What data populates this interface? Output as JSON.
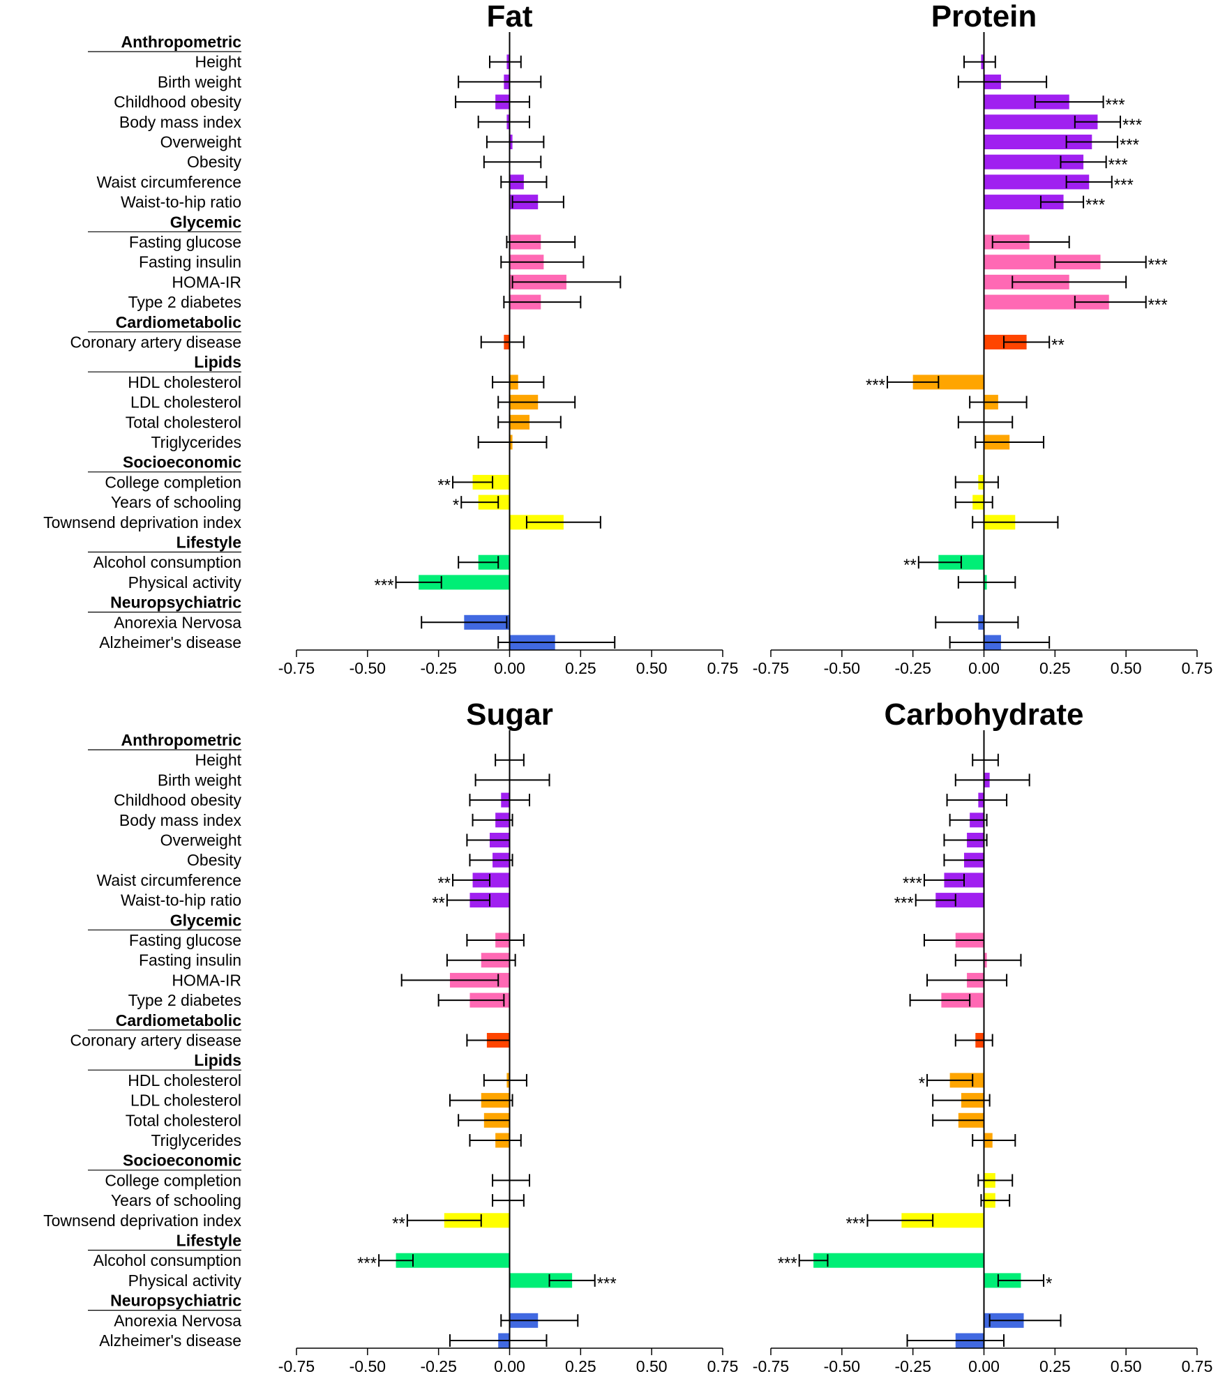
{
  "chart_data": {
    "type": "bar",
    "orientation": "horizontal",
    "xlim": [
      -0.75,
      0.75
    ],
    "xticks": [
      "-0.75",
      "-0.50",
      "-0.25",
      "0.00",
      "0.25",
      "0.50",
      "0.75"
    ],
    "colors": {
      "Anthropometric": "#a020f0",
      "Glycemic": "#ff69b4",
      "Cardiometabolic": "#ff4500",
      "Lipids": "#ffa500",
      "Socioeconomic": "#ffff00",
      "Lifestyle": "#00ee76",
      "Neuropsychiatric": "#4169e1"
    },
    "groups": [
      {
        "name": "Anthropometric",
        "traits": [
          "Height",
          "Birth weight",
          "Childhood obesity",
          "Body mass index",
          "Overweight",
          "Obesity",
          "Waist circumference",
          "Waist-to-hip ratio"
        ]
      },
      {
        "name": "Glycemic",
        "traits": [
          "Fasting glucose",
          "Fasting insulin",
          "HOMA-IR",
          "Type 2 diabetes"
        ]
      },
      {
        "name": "Cardiometabolic",
        "traits": [
          "Coronary artery disease"
        ]
      },
      {
        "name": "Lipids",
        "traits": [
          "HDL cholesterol",
          "LDL cholesterol",
          "Total cholesterol",
          "Triglycerides"
        ]
      },
      {
        "name": "Socioeconomic",
        "traits": [
          "College completion",
          "Years of schooling",
          "Townsend deprivation index"
        ]
      },
      {
        "name": "Lifestyle",
        "traits": [
          "Alcohol consumption",
          "Physical activity"
        ]
      },
      {
        "name": "Neuropsychiatric",
        "traits": [
          "Anorexia Nervosa",
          "Alzheimer's disease"
        ]
      }
    ],
    "panels": [
      {
        "title": "Fat",
        "values": [
          -0.01,
          -0.02,
          -0.05,
          -0.01,
          0.01,
          0.0,
          0.05,
          0.1,
          0.11,
          0.12,
          0.2,
          0.11,
          -0.02,
          0.03,
          0.1,
          0.07,
          0.01,
          -0.13,
          -0.11,
          0.19,
          -0.11,
          -0.32,
          -0.16,
          0.16
        ],
        "ci_low": [
          -0.07,
          -0.18,
          -0.19,
          -0.11,
          -0.08,
          -0.09,
          -0.03,
          0.01,
          -0.01,
          -0.03,
          0.01,
          -0.02,
          -0.1,
          -0.06,
          -0.04,
          -0.04,
          -0.11,
          -0.2,
          -0.17,
          0.06,
          -0.18,
          -0.4,
          -0.31,
          -0.04
        ],
        "ci_high": [
          0.04,
          0.11,
          0.07,
          0.07,
          0.12,
          0.11,
          0.13,
          0.19,
          0.23,
          0.26,
          0.39,
          0.25,
          0.05,
          0.12,
          0.23,
          0.18,
          0.13,
          -0.06,
          -0.04,
          0.32,
          -0.04,
          -0.24,
          -0.01,
          0.37
        ],
        "sig": [
          "",
          "",
          "",
          "",
          "",
          "",
          "",
          "",
          "",
          "",
          "",
          "",
          "",
          "",
          "",
          "",
          "",
          "**",
          "*",
          "",
          "",
          "***",
          "",
          ""
        ]
      },
      {
        "title": "Protein",
        "values": [
          -0.01,
          0.06,
          0.3,
          0.4,
          0.38,
          0.35,
          0.37,
          0.28,
          0.16,
          0.41,
          0.3,
          0.44,
          0.15,
          -0.25,
          0.05,
          0.0,
          0.09,
          -0.02,
          -0.04,
          0.11,
          -0.16,
          0.01,
          -0.02,
          0.06
        ],
        "ci_low": [
          -0.07,
          -0.09,
          0.18,
          0.32,
          0.29,
          0.27,
          0.29,
          0.2,
          0.03,
          0.25,
          0.1,
          0.32,
          0.07,
          -0.34,
          -0.05,
          -0.09,
          -0.03,
          -0.1,
          -0.1,
          -0.04,
          -0.23,
          -0.09,
          -0.17,
          -0.12
        ],
        "ci_high": [
          0.04,
          0.22,
          0.42,
          0.48,
          0.47,
          0.43,
          0.45,
          0.35,
          0.3,
          0.57,
          0.5,
          0.57,
          0.23,
          -0.16,
          0.15,
          0.1,
          0.21,
          0.05,
          0.03,
          0.26,
          -0.08,
          0.11,
          0.12,
          0.23
        ],
        "sig": [
          "",
          "",
          "***",
          "***",
          "***",
          "***",
          "***",
          "***",
          "",
          "***",
          "",
          "***",
          "**",
          "***",
          "",
          "",
          "",
          "",
          "",
          "",
          "**",
          "",
          "",
          ""
        ]
      },
      {
        "title": "Sugar",
        "values": [
          0.0,
          0.0,
          -0.03,
          -0.05,
          -0.07,
          -0.06,
          -0.13,
          -0.14,
          -0.05,
          -0.1,
          -0.21,
          -0.14,
          -0.08,
          -0.01,
          -0.1,
          -0.09,
          -0.05,
          0.0,
          0.0,
          -0.23,
          -0.4,
          0.22,
          0.1,
          -0.04
        ],
        "ci_low": [
          -0.05,
          -0.12,
          -0.14,
          -0.13,
          -0.15,
          -0.14,
          -0.2,
          -0.22,
          -0.15,
          -0.22,
          -0.38,
          -0.25,
          -0.15,
          -0.09,
          -0.21,
          -0.18,
          -0.14,
          -0.06,
          -0.06,
          -0.36,
          -0.46,
          0.14,
          -0.03,
          -0.21
        ],
        "ci_high": [
          0.05,
          0.14,
          0.07,
          0.01,
          0.0,
          0.01,
          -0.07,
          -0.07,
          0.05,
          0.02,
          -0.04,
          -0.02,
          0.0,
          0.06,
          0.01,
          0.0,
          0.04,
          0.07,
          0.05,
          -0.1,
          -0.34,
          0.3,
          0.24,
          0.13
        ],
        "sig": [
          "",
          "",
          "",
          "",
          "",
          "",
          "**",
          "**",
          "",
          "",
          "",
          "",
          "",
          "",
          "",
          "",
          "",
          "",
          "",
          "**",
          "***",
          "***",
          "",
          ""
        ]
      },
      {
        "title": "Carbohydrate",
        "values": [
          0.0,
          0.02,
          -0.02,
          -0.05,
          -0.06,
          -0.07,
          -0.14,
          -0.17,
          -0.1,
          0.01,
          -0.06,
          -0.15,
          -0.03,
          -0.12,
          -0.08,
          -0.09,
          0.03,
          0.04,
          0.04,
          -0.29,
          -0.6,
          0.13,
          0.14,
          -0.1
        ],
        "ci_low": [
          -0.04,
          -0.1,
          -0.13,
          -0.12,
          -0.14,
          -0.14,
          -0.21,
          -0.24,
          -0.21,
          -0.1,
          -0.2,
          -0.26,
          -0.1,
          -0.2,
          -0.18,
          -0.18,
          -0.04,
          -0.02,
          -0.01,
          -0.41,
          -0.65,
          0.05,
          0.02,
          -0.27
        ],
        "ci_high": [
          0.05,
          0.16,
          0.08,
          0.01,
          0.01,
          0.0,
          -0.07,
          -0.1,
          0.0,
          0.13,
          0.08,
          -0.05,
          0.03,
          -0.04,
          0.02,
          0.0,
          0.11,
          0.1,
          0.09,
          -0.18,
          -0.55,
          0.21,
          0.27,
          0.07
        ],
        "sig": [
          "",
          "",
          "",
          "",
          "",
          "",
          "***",
          "***",
          "",
          "",
          "",
          "",
          "",
          "*",
          "",
          "",
          "",
          "",
          "",
          "***",
          "***",
          "*",
          "",
          ""
        ]
      }
    ]
  }
}
